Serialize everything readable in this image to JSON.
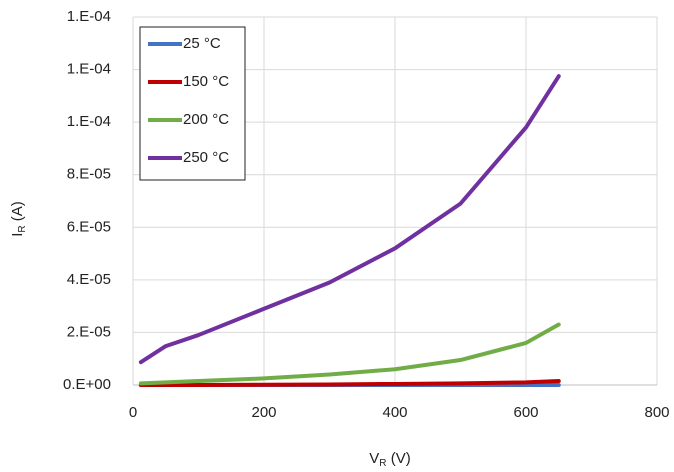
{
  "chart_data": {
    "type": "line",
    "xlabel": [
      "V",
      "R",
      " (V)"
    ],
    "ylabel": [
      "I",
      "R",
      " (A)"
    ],
    "x": [
      12,
      50,
      100,
      200,
      300,
      400,
      500,
      600,
      650
    ],
    "series": [
      {
        "name": "25 °C",
        "color": "#4472c4",
        "values": [
          0,
          0,
          0,
          0,
          0,
          0,
          0,
          0,
          0
        ]
      },
      {
        "name": "150 °C",
        "color": "#c00000",
        "values": [
          0,
          0,
          0,
          1e-07,
          2e-07,
          4e-07,
          6e-07,
          1e-06,
          1.5e-06
        ]
      },
      {
        "name": "200 °C",
        "color": "#70ad47",
        "values": [
          6e-07,
          1e-06,
          1.5e-06,
          2.5e-06,
          4e-06,
          6e-06,
          9.5e-06,
          1.6e-05,
          2.3e-05
        ]
      },
      {
        "name": "250 °C",
        "color": "#7030a0",
        "values": [
          8.7e-06,
          1.48e-05,
          1.9e-05,
          2.9e-05,
          3.9e-05,
          5.2e-05,
          6.9e-05,
          9.8e-05,
          0.0001175
        ]
      }
    ],
    "xlim": [
      0,
      800
    ],
    "xticks": [
      0,
      200,
      400,
      600,
      800
    ],
    "ylim": [
      0,
      0.00014
    ],
    "yticks": [
      {
        "value": 0,
        "label": "0.E+00"
      },
      {
        "value": 2e-05,
        "label": "2.E-05"
      },
      {
        "value": 4e-05,
        "label": "4.E-05"
      },
      {
        "value": 6e-05,
        "label": "6.E-05"
      },
      {
        "value": 8e-05,
        "label": "8.E-05"
      },
      {
        "value": 0.0001,
        "label": "1.E-04"
      },
      {
        "value": 0.00012,
        "label": "1.E-04"
      },
      {
        "value": 0.00014,
        "label": "1.E-04"
      }
    ],
    "grid": true,
    "legend": "top-left"
  }
}
